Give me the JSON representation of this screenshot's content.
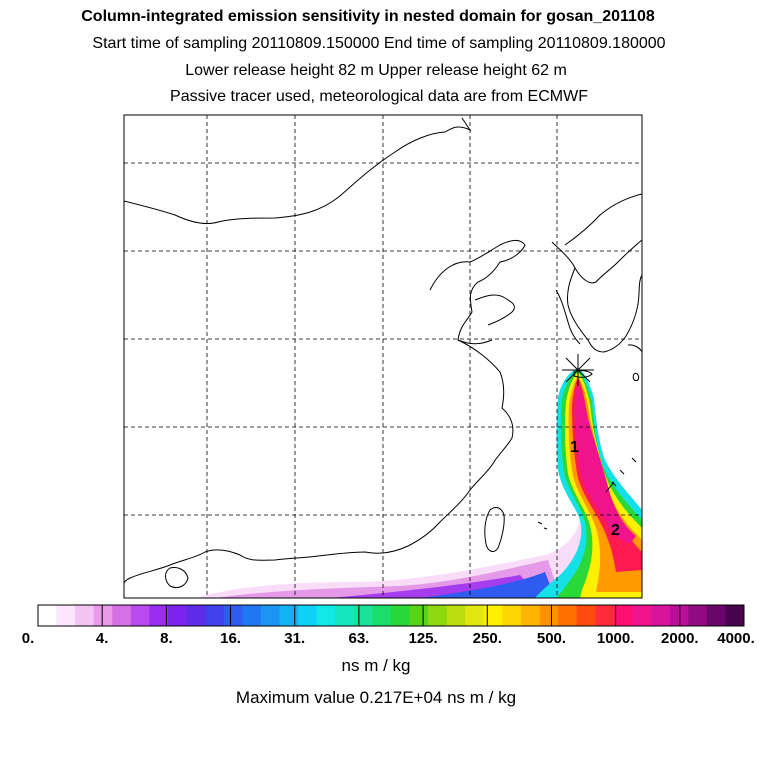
{
  "header": {
    "title": "Column-integrated emission sensitivity in nested domain for gosan_201108",
    "sampling": "Start time of sampling 20110809.150000     End time of sampling 20110809.180000",
    "release": "Lower release height   82 m          Upper release height   62 m",
    "note": "Passive tracer used, meteorological data are from ECMWF"
  },
  "map": {
    "markers": [
      {
        "id": "receptor",
        "symbol": "star"
      },
      {
        "id": "label-1",
        "text": "1"
      },
      {
        "id": "label-2",
        "text": "2"
      }
    ]
  },
  "colorbar": {
    "labels": [
      "0.",
      "4.",
      "8.",
      "16.",
      "31.",
      "63.",
      "125.",
      "250.",
      "500.",
      "1000.",
      "2000.",
      "4000."
    ],
    "colors": [
      "#ffffff",
      "#fbe6fb",
      "#f3c3f3",
      "#e99ae9",
      "#d670e6",
      "#b94aef",
      "#9a2cf2",
      "#7a22ee",
      "#5c2cea",
      "#4040ec",
      "#2f5bf0",
      "#1f78f2",
      "#1a95f4",
      "#12b3f5",
      "#0fd0f6",
      "#12e8e8",
      "#16e6c0",
      "#1ae29a",
      "#1ade6a",
      "#29d838",
      "#5ad416",
      "#8ed812",
      "#bcde10",
      "#e2e80e",
      "#fff000",
      "#ffd500",
      "#ffb400",
      "#ff9200",
      "#ff6e00",
      "#ff4a10",
      "#ff2a3a",
      "#ff1070",
      "#f0148c",
      "#d8149e",
      "#b80e98",
      "#920a82",
      "#6a066a",
      "#45044d"
    ],
    "units": "ns m / kg",
    "max_text": "Maximum value  0.217E+04 ns m / kg"
  }
}
